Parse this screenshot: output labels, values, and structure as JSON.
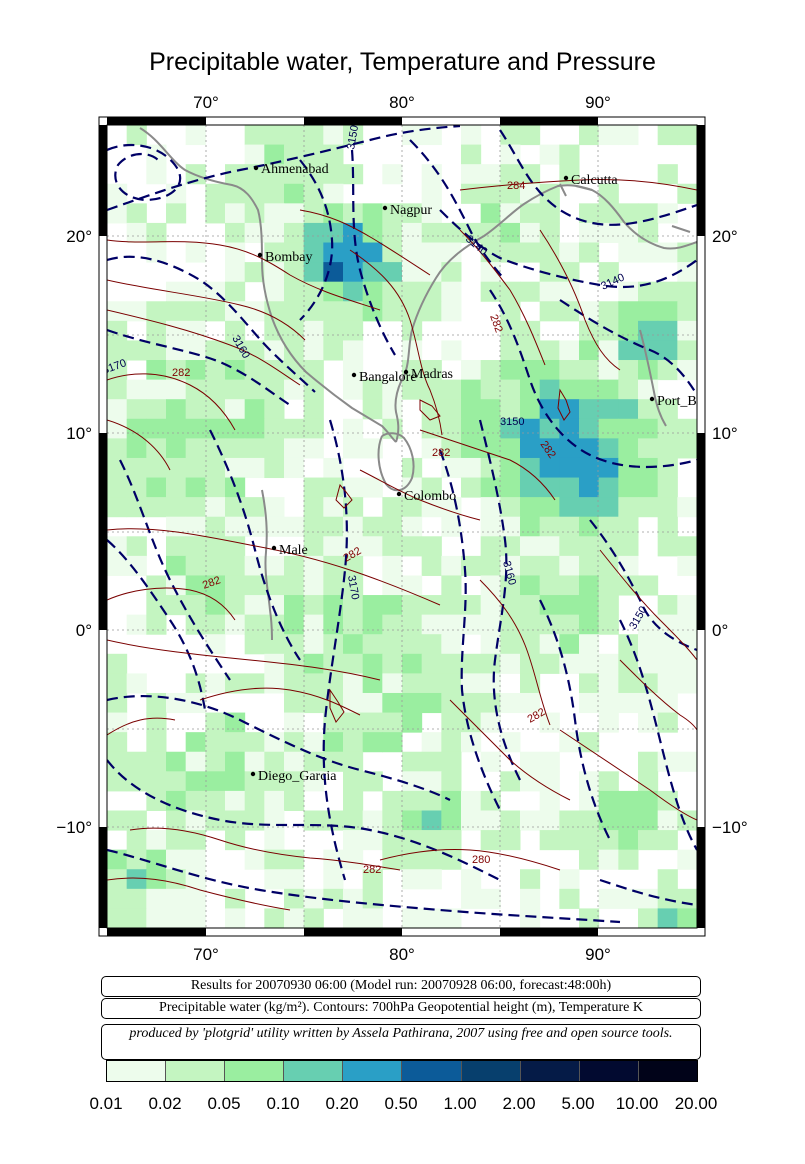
{
  "title": "Precipitable water, Temperature and Pressure",
  "axes": {
    "lon_ticks": [
      "70°",
      "80°",
      "90°"
    ],
    "lat_ticks": [
      "20°",
      "10°",
      "0°",
      "−10°"
    ]
  },
  "cities": [
    {
      "name": "Ahmenabad"
    },
    {
      "name": "Nagpur"
    },
    {
      "name": "Calcutta"
    },
    {
      "name": "Bombay"
    },
    {
      "name": "Bangalore"
    },
    {
      "name": "Madras"
    },
    {
      "name": "Port_B"
    },
    {
      "name": "Colombo"
    },
    {
      "name": "Male"
    },
    {
      "name": "Diego_Garcia"
    }
  ],
  "contour_labels": {
    "temperature": [
      "284",
      "282",
      "282",
      "282",
      "282",
      "282",
      "282",
      "282",
      "280",
      "282"
    ],
    "height": [
      "3150",
      "3140",
      "3140",
      "3160",
      "3170",
      "3150",
      "3160",
      "3170",
      "3150"
    ]
  },
  "info": {
    "results": "Results for 20070930 06:00 (Model run: 20070928 06:00, forecast:48:00h)",
    "contours": "Precipitable water (kg/m²).  Contours: 700hPa Geopotential height (m), Temperature K",
    "credit": "produced by 'plotgrid' utility written by Assela Pathirana, 2007 using free and open source tools."
  },
  "legend": {
    "labels": [
      "0.01",
      "0.02",
      "0.05",
      "0.10",
      "0.20",
      "0.50",
      "1.00",
      "2.00",
      "5.00",
      "10.00",
      "20.00"
    ],
    "colors": [
      "#edfcec",
      "#c4f5c1",
      "#9aeea0",
      "#67cfb1",
      "#2a9fc6",
      "#0c5b99",
      "#073f6d",
      "#051b47",
      "#020a30",
      "#010319"
    ]
  }
}
